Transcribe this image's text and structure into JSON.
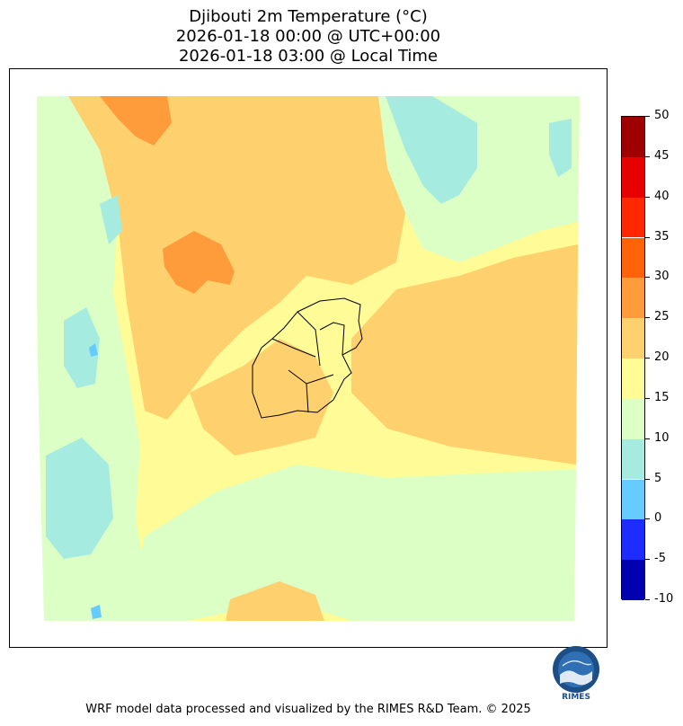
{
  "title": {
    "line1": "Djibouti 2m Temperature (°C)",
    "line2": "2026-01-18 00:00 @ UTC+00:00",
    "line3": "2026-01-18 03:00 @ Local Time"
  },
  "colorbar": {
    "levels": [
      -10,
      -5,
      0,
      5,
      10,
      15,
      20,
      25,
      30,
      35,
      40,
      45,
      50
    ],
    "labels": [
      "-10",
      "-5",
      "0",
      "5",
      "10",
      "15",
      "20",
      "25",
      "30",
      "35",
      "40",
      "45",
      "50"
    ],
    "colors": [
      "#0000b0",
      "#1e2cff",
      "#66ccff",
      "#a6ebe0",
      "#dbffc4",
      "#fffb96",
      "#fed06e",
      "#fe9b3a",
      "#ff6208",
      "#ff2800",
      "#e60000",
      "#9e0000"
    ]
  },
  "logo": {
    "text": "RIMES"
  },
  "footer": "WRF model data processed and visualized by the RIMES R&D Team. © 2025"
}
